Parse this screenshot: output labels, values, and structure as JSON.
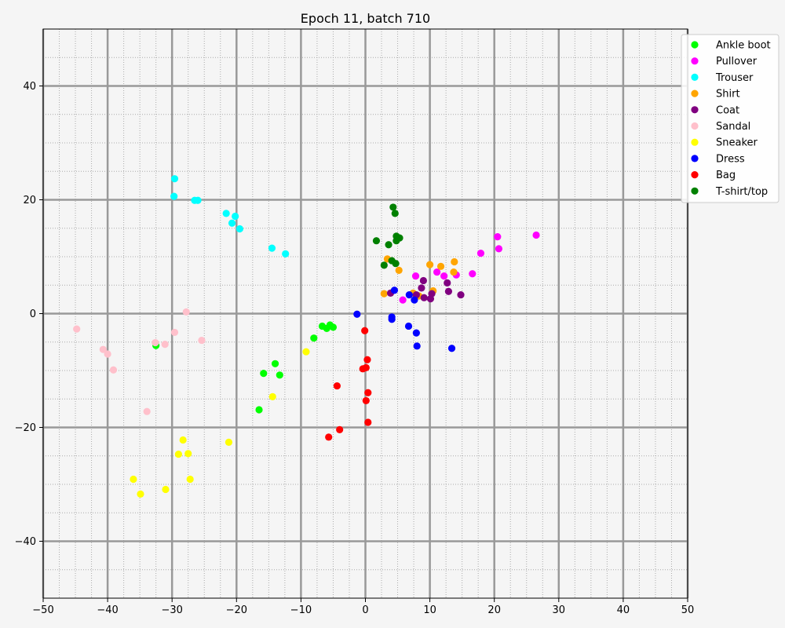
{
  "chart_data": {
    "type": "scatter",
    "title": "Epoch 11, batch 710",
    "xlabel": "",
    "ylabel": "",
    "xlim": [
      -50,
      50
    ],
    "ylim": [
      -50,
      50
    ],
    "xticks": [
      -50,
      -40,
      -30,
      -20,
      -10,
      0,
      10,
      20,
      30,
      40,
      50
    ],
    "yticks": [
      -40,
      -20,
      0,
      20,
      40
    ],
    "grid": {
      "major": true,
      "minor": true,
      "major_color": "#999999",
      "minor_color": "#aaaaaa"
    },
    "legend_position": "top-right",
    "series": [
      {
        "name": "Ankle boot",
        "color": "#00ff00",
        "points": [
          [
            -6.7,
            -2.2
          ],
          [
            -6,
            -2.6
          ],
          [
            -5.5,
            -2
          ],
          [
            -5,
            -2.4
          ],
          [
            -8,
            -4.3
          ],
          [
            -14,
            -8.8
          ],
          [
            -15.8,
            -10.5
          ],
          [
            -13.3,
            -10.8
          ],
          [
            -16.5,
            -16.9
          ],
          [
            -32.5,
            -5.6
          ]
        ]
      },
      {
        "name": "Pullover",
        "color": "#ff00ff",
        "points": [
          [
            26.5,
            13.8
          ],
          [
            20.5,
            13.5
          ],
          [
            20.7,
            11.4
          ],
          [
            17.9,
            10.6
          ],
          [
            16.6,
            7
          ],
          [
            14.1,
            6.8
          ],
          [
            12.2,
            6.6
          ],
          [
            11.1,
            7.3
          ],
          [
            7.8,
            6.6
          ],
          [
            5.8,
            2.4
          ]
        ]
      },
      {
        "name": "Trouser",
        "color": "#00ffff",
        "points": [
          [
            -29.6,
            23.7
          ],
          [
            -29.7,
            20.6
          ],
          [
            -26.5,
            19.9
          ],
          [
            -26,
            19.9
          ],
          [
            -21.6,
            17.6
          ],
          [
            -20.2,
            17.1
          ],
          [
            -20.7,
            15.9
          ],
          [
            -19.5,
            14.9
          ],
          [
            -14.5,
            11.5
          ],
          [
            -12.4,
            10.5
          ]
        ]
      },
      {
        "name": "Shirt",
        "color": "#ffa500",
        "points": [
          [
            3.4,
            9.6
          ],
          [
            5.2,
            7.6
          ],
          [
            10,
            8.6
          ],
          [
            11.7,
            8.3
          ],
          [
            13.8,
            9.1
          ],
          [
            13.7,
            7.3
          ],
          [
            2.9,
            3.5
          ],
          [
            7.4,
            3.6
          ],
          [
            8.3,
            3.1
          ],
          [
            10.5,
            4
          ]
        ]
      },
      {
        "name": "Coat",
        "color": "#800080",
        "points": [
          [
            9,
            5.8
          ],
          [
            12.7,
            5.4
          ],
          [
            8.7,
            4.5
          ],
          [
            12.9,
            3.9
          ],
          [
            10.3,
            3.5
          ],
          [
            3.9,
            3.6
          ],
          [
            14.8,
            3.3
          ],
          [
            9.1,
            2.8
          ],
          [
            10.1,
            2.6
          ],
          [
            7.9,
            3.3
          ]
        ]
      },
      {
        "name": "Sandal",
        "color": "#ffc0cb",
        "points": [
          [
            -44.8,
            -2.7
          ],
          [
            -40.7,
            -6.3
          ],
          [
            -40,
            -7.1
          ],
          [
            -39.1,
            -9.9
          ],
          [
            -33.9,
            -17.2
          ],
          [
            -32.6,
            -5.1
          ],
          [
            -31.1,
            -5.4
          ],
          [
            -29.6,
            -3.3
          ],
          [
            -27.8,
            0.3
          ],
          [
            -25.4,
            -4.7
          ]
        ]
      },
      {
        "name": "Sneaker",
        "color": "#ffff00",
        "points": [
          [
            -9.2,
            -6.7
          ],
          [
            -14.4,
            -14.6
          ],
          [
            -21.2,
            -22.6
          ],
          [
            -28.3,
            -22.2
          ],
          [
            -29,
            -24.7
          ],
          [
            -27.5,
            -24.6
          ],
          [
            -27.2,
            -29.1
          ],
          [
            -31,
            -30.9
          ],
          [
            -36,
            -29.1
          ],
          [
            -34.9,
            -31.7
          ]
        ]
      },
      {
        "name": "Dress",
        "color": "#0000ff",
        "points": [
          [
            -1.3,
            -0.1
          ],
          [
            4.1,
            -0.6
          ],
          [
            4.1,
            -1
          ],
          [
            4.5,
            4.1
          ],
          [
            6.8,
            3.3
          ],
          [
            7.6,
            2.4
          ],
          [
            6.7,
            -2.2
          ],
          [
            7.9,
            -3.4
          ],
          [
            8,
            -5.7
          ],
          [
            13.4,
            -6.1
          ]
        ]
      },
      {
        "name": "Bag",
        "color": "#ff0000",
        "points": [
          [
            -0.1,
            -3
          ],
          [
            0.3,
            -8.1
          ],
          [
            0.1,
            -9.5
          ],
          [
            -0.4,
            -9.7
          ],
          [
            -4.4,
            -12.7
          ],
          [
            0.4,
            -13.9
          ],
          [
            0.1,
            -15.3
          ],
          [
            0.4,
            -19.1
          ],
          [
            -4,
            -20.4
          ],
          [
            -5.7,
            -21.7
          ]
        ]
      },
      {
        "name": "T-shirt/top",
        "color": "#008000",
        "points": [
          [
            4.3,
            18.7
          ],
          [
            4.6,
            17.6
          ],
          [
            1.7,
            12.8
          ],
          [
            4.8,
            13.6
          ],
          [
            5.3,
            13.3
          ],
          [
            4.8,
            12.8
          ],
          [
            3.6,
            12.1
          ],
          [
            4.1,
            9.3
          ],
          [
            4.7,
            8.8
          ],
          [
            2.9,
            8.5
          ]
        ]
      }
    ]
  }
}
